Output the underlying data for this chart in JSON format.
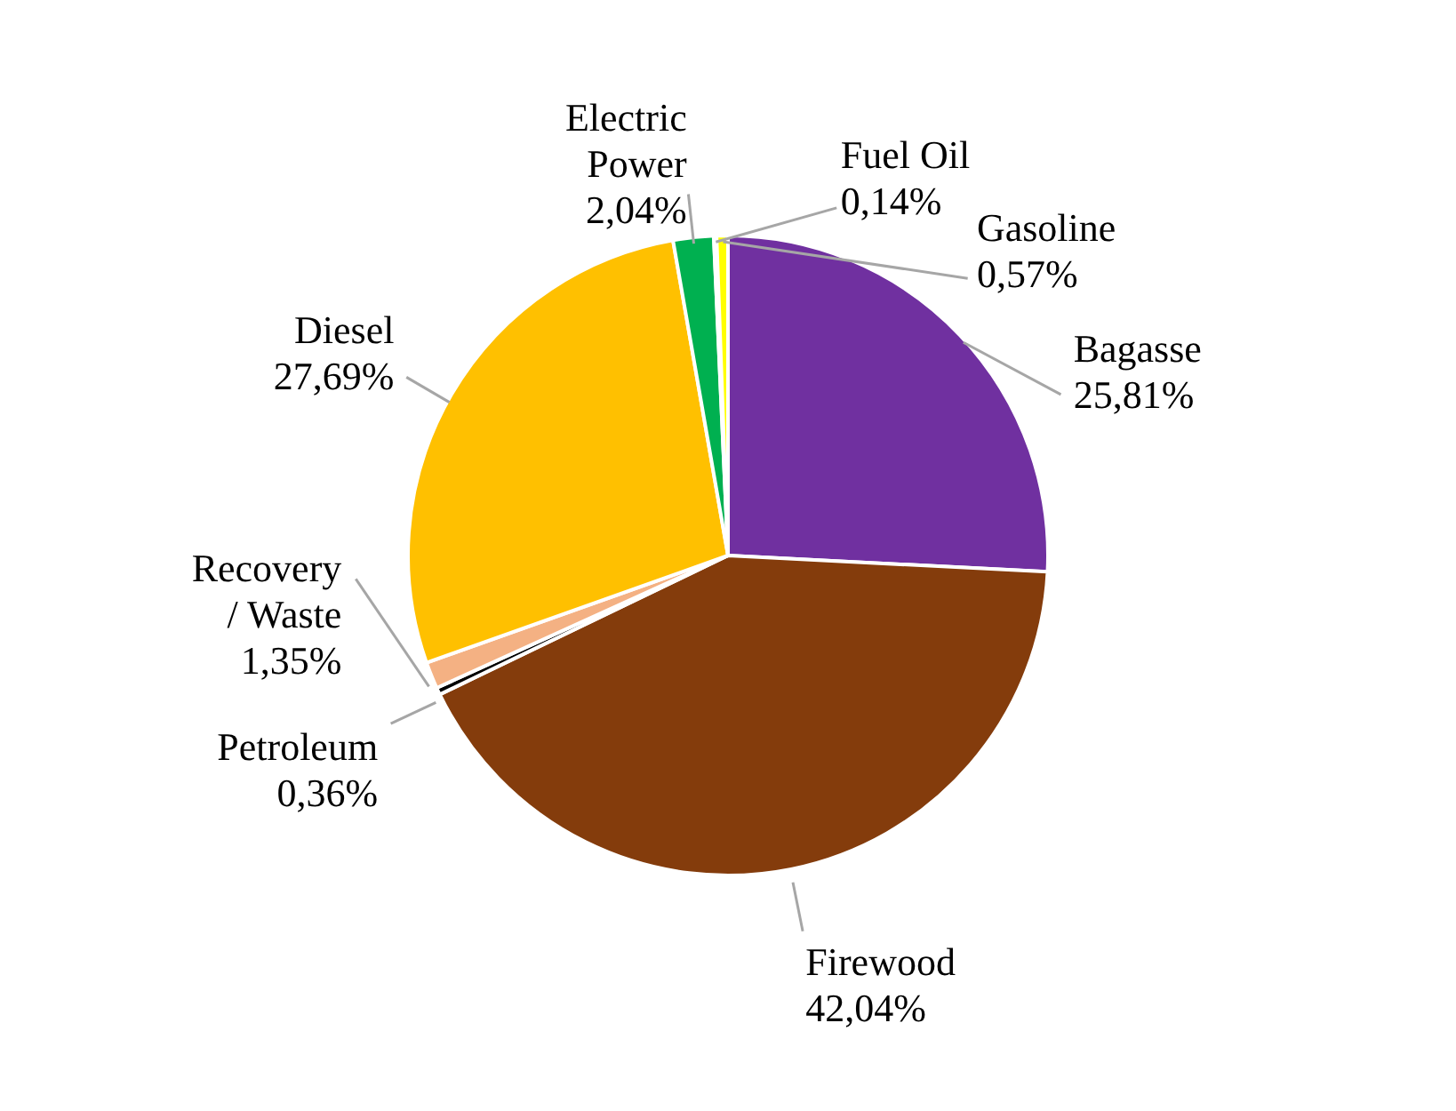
{
  "chart_data": {
    "type": "pie",
    "categories": [
      "Bagasse",
      "Firewood",
      "Petroleum",
      "Recovery / Waste",
      "Diesel",
      "Electric Power",
      "Fuel Oil",
      "Gasoline"
    ],
    "values": [
      25.81,
      42.04,
      0.36,
      1.35,
      27.69,
      2.04,
      0.14,
      0.57
    ],
    "value_labels": [
      "25,81%",
      "42,04%",
      "0,36%",
      "1,35%",
      "27,69%",
      "2,04%",
      "0,14%",
      "0,57%"
    ],
    "colors": [
      "#7030a0",
      "#843c0c",
      "#000000",
      "#f4b183",
      "#ffc000",
      "#00b050",
      "#70ad47",
      "#ffff00"
    ]
  }
}
